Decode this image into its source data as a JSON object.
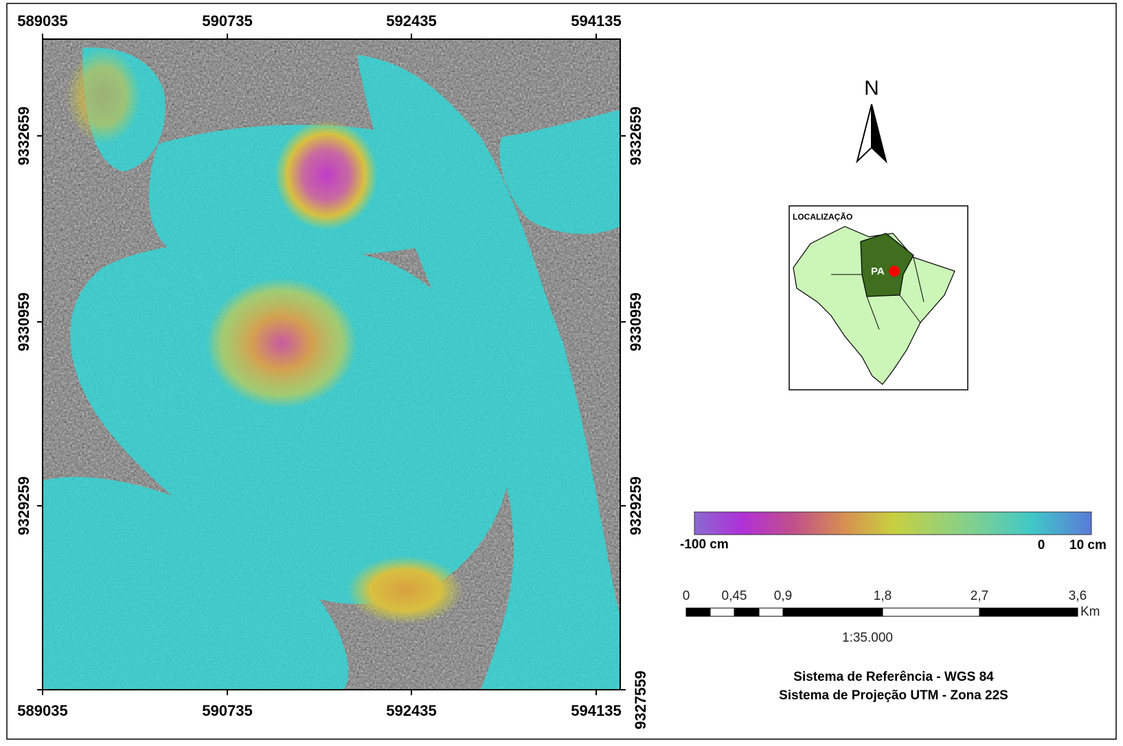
{
  "map": {
    "x_labels": [
      "589035",
      "590735",
      "592435",
      "594135"
    ],
    "y_labels": [
      "9332659",
      "9330959",
      "9329259",
      "9327559"
    ],
    "north": "N",
    "inset": {
      "title": "LOCALIZAÇÃO",
      "state": "PA"
    },
    "legend": {
      "min_label": "-100 cm",
      "zero_label": "0",
      "max_label": "10 cm"
    },
    "scale_bar": {
      "labels": [
        "0",
        "0,45",
        "0,9",
        "1,8",
        "2,7",
        "3,6"
      ],
      "unit": "Km",
      "ratio": "1:35.000"
    },
    "reference": [
      "Sistema de Referência - WGS 84",
      "Sistema de Projeção UTM - Zona 22S"
    ]
  }
}
